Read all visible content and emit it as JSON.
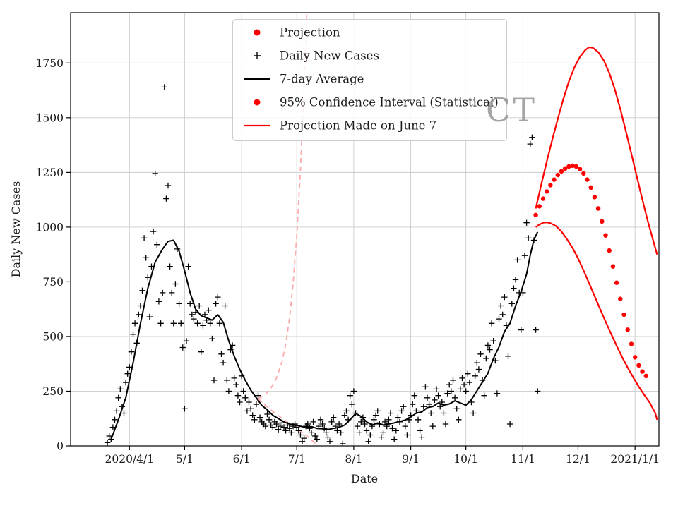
{
  "figure": {
    "watermark": "CT"
  },
  "chart_data": {
    "type": "scatter",
    "title": "",
    "xlabel": "Date",
    "ylabel": "Daily New Cases",
    "ylim": [
      0,
      1980
    ],
    "x_domain": [
      "2020-02-29",
      "2021-01-14"
    ],
    "grid": true,
    "legend_position": "upper center",
    "y_ticks": [
      0,
      250,
      500,
      750,
      1000,
      1250,
      1500,
      1750
    ],
    "x_ticks": [
      {
        "date": "2020-04-01",
        "label": "2020/4/1"
      },
      {
        "date": "2020-05-01",
        "label": "5/1"
      },
      {
        "date": "2020-06-01",
        "label": "6/1"
      },
      {
        "date": "2020-07-01",
        "label": "7/1"
      },
      {
        "date": "2020-08-01",
        "label": "8/1"
      },
      {
        "date": "2020-09-01",
        "label": "9/1"
      },
      {
        "date": "2020-10-01",
        "label": "10/1"
      },
      {
        "date": "2020-11-01",
        "label": "11/1"
      },
      {
        "date": "2020-12-01",
        "label": "12/1"
      },
      {
        "date": "2021-01-01",
        "label": "2021/1/1"
      }
    ],
    "legend": [
      {
        "label": "Projection",
        "marker": "red-dot"
      },
      {
        "label": "Daily New Cases",
        "marker": "black-plus"
      },
      {
        "label": "7-day Average",
        "marker": "black-line"
      },
      {
        "label": "95% Confidence Interval (Statistical)",
        "marker": "red-dot"
      },
      {
        "label": "Projection Made on June 7",
        "marker": "red-line"
      }
    ],
    "colors": {
      "projection": "#ff0000",
      "confidence_interval": "#ff0000",
      "june7_projection": "#ffaaaa",
      "daily_cases": "#000000",
      "seven_day_average": "#000000",
      "grid": "#cccccc",
      "spine": "#000000",
      "watermark": "#8f8f8f"
    },
    "series": {
      "daily_new_cases": {
        "start_date": "2020-03-20",
        "values": [
          15,
          45,
          30,
          85,
          120,
          160,
          220,
          260,
          180,
          150,
          290,
          330,
          360,
          430,
          510,
          560,
          470,
          600,
          640,
          710,
          950,
          860,
          770,
          590,
          820,
          980,
          1245,
          920,
          660,
          560,
          700,
          1640,
          1130,
          1190,
          820,
          700,
          560,
          740,
          900,
          650,
          560,
          450,
          170,
          480,
          820,
          650,
          600,
          580,
          610,
          560,
          640,
          430,
          550,
          600,
          575,
          620,
          560,
          490,
          300,
          650,
          680,
          560,
          420,
          380,
          640,
          300,
          250,
          440,
          460,
          310,
          280,
          230,
          200,
          320,
          250,
          220,
          160,
          200,
          170,
          140,
          120,
          190,
          230,
          130,
          110,
          100,
          90,
          145,
          120,
          95,
          85,
          110,
          100,
          75,
          90,
          105,
          85,
          70,
          95,
          80,
          60,
          90,
          100,
          85,
          70,
          50,
          20,
          35,
          90,
          100,
          80,
          60,
          110,
          45,
          30,
          90,
          120,
          100,
          80,
          60,
          40,
          20,
          110,
          130,
          90,
          70,
          100,
          60,
          10,
          140,
          160,
          120,
          230,
          190,
          250,
          150,
          90,
          60,
          110,
          130,
          100,
          70,
          20,
          50,
          90,
          120,
          140,
          160,
          100,
          40,
          60,
          110,
          90,
          120,
          150,
          80,
          30,
          70,
          130,
          110,
          160,
          180,
          90,
          50,
          120,
          140,
          190,
          230,
          160,
          120,
          70,
          40,
          180,
          270,
          220,
          190,
          150,
          90,
          210,
          260,
          230,
          180,
          200,
          150,
          100,
          240,
          280,
          250,
          300,
          220,
          170,
          120,
          260,
          310,
          280,
          250,
          330,
          290,
          200,
          150,
          320,
          380,
          350,
          420,
          300,
          230,
          400,
          460,
          440,
          560,
          480,
          390,
          240,
          580,
          640,
          600,
          680,
          550,
          410,
          100,
          650,
          720,
          760,
          850,
          700,
          530,
          700,
          870,
          1020,
          950,
          1380,
          1410,
          940,
          530,
          250
        ]
      },
      "seven_day_average": {
        "points": [
          [
            "2020-03-22",
            30
          ],
          [
            "2020-03-26",
            120
          ],
          [
            "2020-03-30",
            220
          ],
          [
            "2020-04-03",
            380
          ],
          [
            "2020-04-07",
            560
          ],
          [
            "2020-04-11",
            720
          ],
          [
            "2020-04-15",
            840
          ],
          [
            "2020-04-19",
            900
          ],
          [
            "2020-04-22",
            935
          ],
          [
            "2020-04-25",
            940
          ],
          [
            "2020-04-28",
            890
          ],
          [
            "2020-05-01",
            800
          ],
          [
            "2020-05-04",
            700
          ],
          [
            "2020-05-07",
            625
          ],
          [
            "2020-05-10",
            595
          ],
          [
            "2020-05-13",
            585
          ],
          [
            "2020-05-16",
            575
          ],
          [
            "2020-05-19",
            600
          ],
          [
            "2020-05-22",
            565
          ],
          [
            "2020-05-25",
            480
          ],
          [
            "2020-05-28",
            410
          ],
          [
            "2020-05-31",
            350
          ],
          [
            "2020-06-03",
            300
          ],
          [
            "2020-06-06",
            255
          ],
          [
            "2020-06-09",
            220
          ],
          [
            "2020-06-12",
            185
          ],
          [
            "2020-06-15",
            165
          ],
          [
            "2020-06-18",
            140
          ],
          [
            "2020-06-21",
            125
          ],
          [
            "2020-06-24",
            110
          ],
          [
            "2020-06-27",
            100
          ],
          [
            "2020-06-30",
            95
          ],
          [
            "2020-07-03",
            90
          ],
          [
            "2020-07-06",
            85
          ],
          [
            "2020-07-09",
            88
          ],
          [
            "2020-07-12",
            80
          ],
          [
            "2020-07-15",
            78
          ],
          [
            "2020-07-18",
            75
          ],
          [
            "2020-07-21",
            80
          ],
          [
            "2020-07-24",
            85
          ],
          [
            "2020-07-27",
            95
          ],
          [
            "2020-07-30",
            120
          ],
          [
            "2020-08-02",
            148
          ],
          [
            "2020-08-05",
            135
          ],
          [
            "2020-08-08",
            110
          ],
          [
            "2020-08-11",
            95
          ],
          [
            "2020-08-14",
            105
          ],
          [
            "2020-08-17",
            95
          ],
          [
            "2020-08-20",
            100
          ],
          [
            "2020-08-23",
            105
          ],
          [
            "2020-08-26",
            112
          ],
          [
            "2020-08-29",
            118
          ],
          [
            "2020-09-01",
            132
          ],
          [
            "2020-09-04",
            150
          ],
          [
            "2020-09-07",
            155
          ],
          [
            "2020-09-10",
            175
          ],
          [
            "2020-09-13",
            180
          ],
          [
            "2020-09-16",
            196
          ],
          [
            "2020-09-19",
            186
          ],
          [
            "2020-09-22",
            192
          ],
          [
            "2020-09-25",
            206
          ],
          [
            "2020-09-28",
            196
          ],
          [
            "2020-10-01",
            186
          ],
          [
            "2020-10-04",
            212
          ],
          [
            "2020-10-07",
            252
          ],
          [
            "2020-10-10",
            292
          ],
          [
            "2020-10-13",
            332
          ],
          [
            "2020-10-16",
            400
          ],
          [
            "2020-10-19",
            452
          ],
          [
            "2020-10-22",
            522
          ],
          [
            "2020-10-25",
            560
          ],
          [
            "2020-10-28",
            640
          ],
          [
            "2020-10-31",
            705
          ],
          [
            "2020-11-03",
            785
          ],
          [
            "2020-11-05",
            872
          ],
          [
            "2020-11-07",
            942
          ],
          [
            "2020-11-09",
            978
          ]
        ]
      },
      "projection": {
        "start_date": "2020-11-08",
        "values": [
          1055,
          1075,
          1095,
          1113,
          1130,
          1147,
          1163,
          1178,
          1192,
          1205,
          1217,
          1228,
          1238,
          1247,
          1255,
          1262,
          1268,
          1273,
          1277,
          1280,
          1281,
          1280,
          1277,
          1272,
          1265,
          1256,
          1245,
          1232,
          1217,
          1200,
          1181,
          1160,
          1137,
          1112,
          1085,
          1056,
          1026,
          995,
          962,
          928,
          893,
          857,
          820,
          783,
          746,
          709,
          672,
          636,
          600,
          565,
          531,
          498,
          466,
          435,
          405,
          385,
          368,
          352,
          340,
          330,
          320,
          310
        ]
      },
      "ci_upper": {
        "points": [
          [
            "2020-11-08",
            1085
          ],
          [
            "2020-11-11",
            1195
          ],
          [
            "2020-11-14",
            1300
          ],
          [
            "2020-11-17",
            1400
          ],
          [
            "2020-11-20",
            1495
          ],
          [
            "2020-11-23",
            1585
          ],
          [
            "2020-11-26",
            1665
          ],
          [
            "2020-11-29",
            1730
          ],
          [
            "2020-12-02",
            1778
          ],
          [
            "2020-12-05",
            1810
          ],
          [
            "2020-12-07",
            1822
          ],
          [
            "2020-12-09",
            1820
          ],
          [
            "2020-12-12",
            1800
          ],
          [
            "2020-12-15",
            1762
          ],
          [
            "2020-12-18",
            1705
          ],
          [
            "2020-12-21",
            1630
          ],
          [
            "2020-12-24",
            1540
          ],
          [
            "2020-12-27",
            1440
          ],
          [
            "2020-12-30",
            1335
          ],
          [
            "2021-01-02",
            1230
          ],
          [
            "2021-01-05",
            1125
          ],
          [
            "2021-01-08",
            1025
          ],
          [
            "2021-01-11",
            935
          ],
          [
            "2021-01-13",
            875
          ]
        ]
      },
      "ci_lower": {
        "points": [
          [
            "2020-11-08",
            1000
          ],
          [
            "2020-11-10",
            1012
          ],
          [
            "2020-11-12",
            1020
          ],
          [
            "2020-11-14",
            1022
          ],
          [
            "2020-11-16",
            1018
          ],
          [
            "2020-11-19",
            1005
          ],
          [
            "2020-11-22",
            980
          ],
          [
            "2020-11-25",
            945
          ],
          [
            "2020-11-28",
            905
          ],
          [
            "2020-12-01",
            857
          ],
          [
            "2020-12-04",
            802
          ],
          [
            "2020-12-07",
            744
          ],
          [
            "2020-12-10",
            685
          ],
          [
            "2020-12-13",
            626
          ],
          [
            "2020-12-16",
            568
          ],
          [
            "2020-12-19",
            512
          ],
          [
            "2020-12-22",
            458
          ],
          [
            "2020-12-25",
            406
          ],
          [
            "2020-12-28",
            358
          ],
          [
            "2020-12-31",
            313
          ],
          [
            "2021-01-03",
            271
          ],
          [
            "2021-01-06",
            233
          ],
          [
            "2021-01-09",
            198
          ],
          [
            "2021-01-12",
            150
          ],
          [
            "2021-01-13",
            120
          ]
        ]
      },
      "june7_upper": {
        "points": [
          [
            "2020-06-10",
            215
          ],
          [
            "2020-06-14",
            235
          ],
          [
            "2020-06-17",
            265
          ],
          [
            "2020-06-20",
            310
          ],
          [
            "2020-06-23",
            385
          ],
          [
            "2020-06-25",
            465
          ],
          [
            "2020-06-27",
            580
          ],
          [
            "2020-06-29",
            740
          ],
          [
            "2020-07-01",
            960
          ],
          [
            "2020-07-03",
            1260
          ],
          [
            "2020-07-05",
            1650
          ],
          [
            "2020-07-07",
            2100
          ]
        ]
      },
      "june7_lower": {
        "points": [
          [
            "2020-06-10",
            215
          ],
          [
            "2020-06-14",
            185
          ],
          [
            "2020-06-18",
            158
          ],
          [
            "2020-06-22",
            132
          ],
          [
            "2020-06-26",
            108
          ],
          [
            "2020-06-30",
            85
          ],
          [
            "2020-07-04",
            62
          ],
          [
            "2020-07-08",
            35
          ],
          [
            "2020-07-11",
            12
          ]
        ]
      }
    }
  }
}
